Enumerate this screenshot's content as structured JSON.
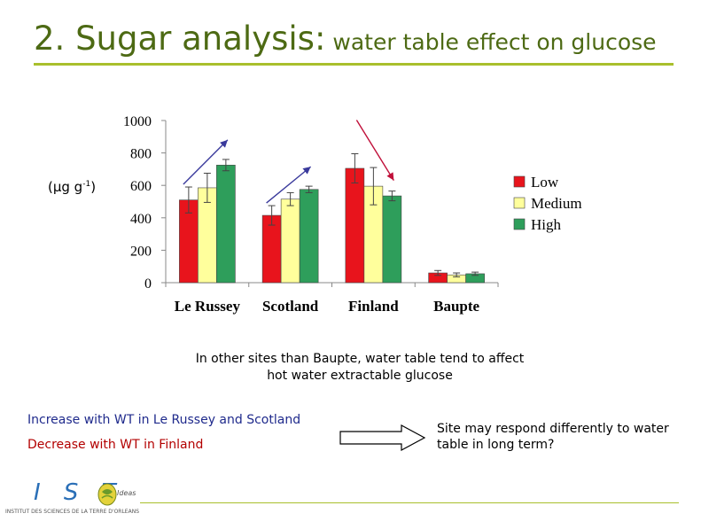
{
  "title": {
    "main": "2. Sugar analysis:",
    "sub": "water table effect on glucose"
  },
  "unit_label": {
    "prefix": "(µg g",
    "exponent": "-1",
    "suffix": ")"
  },
  "chart_data": {
    "type": "bar",
    "title": "",
    "xlabel": "",
    "ylabel": "(µg g-1)",
    "categories": [
      "Le Russey",
      "Scotland",
      "Finland",
      "Baupte"
    ],
    "ylim": [
      0,
      1000
    ],
    "yticks": [
      0,
      200,
      400,
      600,
      800,
      1000
    ],
    "grid": false,
    "legend_position": "right",
    "series": [
      {
        "name": "Low",
        "color": "#e8141c",
        "values": [
          510,
          415,
          705,
          60
        ],
        "errors": [
          80,
          60,
          90,
          15
        ]
      },
      {
        "name": "Medium",
        "color": "#ffff9c",
        "values": [
          585,
          515,
          595,
          48
        ],
        "errors": [
          90,
          40,
          115,
          12
        ]
      },
      {
        "name": "High",
        "color": "#2e9e5b",
        "values": [
          725,
          575,
          535,
          55
        ],
        "errors": [
          35,
          20,
          30,
          10
        ]
      }
    ],
    "annotations": [
      {
        "type": "trend-arrow",
        "category": "Le Russey",
        "direction": "up",
        "color": "#3a3a9c"
      },
      {
        "type": "trend-arrow",
        "category": "Scotland",
        "direction": "up",
        "color": "#3a3a9c"
      },
      {
        "type": "trend-arrow",
        "category": "Finland",
        "direction": "down",
        "color": "#c0103a"
      }
    ]
  },
  "caption": {
    "line1": "In other sites than Baupte, water table tend to affect",
    "line2": "hot water extractable glucose"
  },
  "findings": {
    "increase": "Increase with WT in Le Russey and Scotland",
    "decrease": "Decrease with WT in Finland"
  },
  "conclusion": "Site may respond differently to water table in long term?",
  "logo": {
    "letters": "I S T",
    "badge": "Ideas",
    "subtitle": "INSTITUT DES SCIENCES DE LA TERRE D'ORLEANS"
  },
  "colors": {
    "title": "#4d6a14",
    "rule": "#a9bf2c",
    "increase_text": "#1f2a8c",
    "decrease_text": "#b30000"
  }
}
